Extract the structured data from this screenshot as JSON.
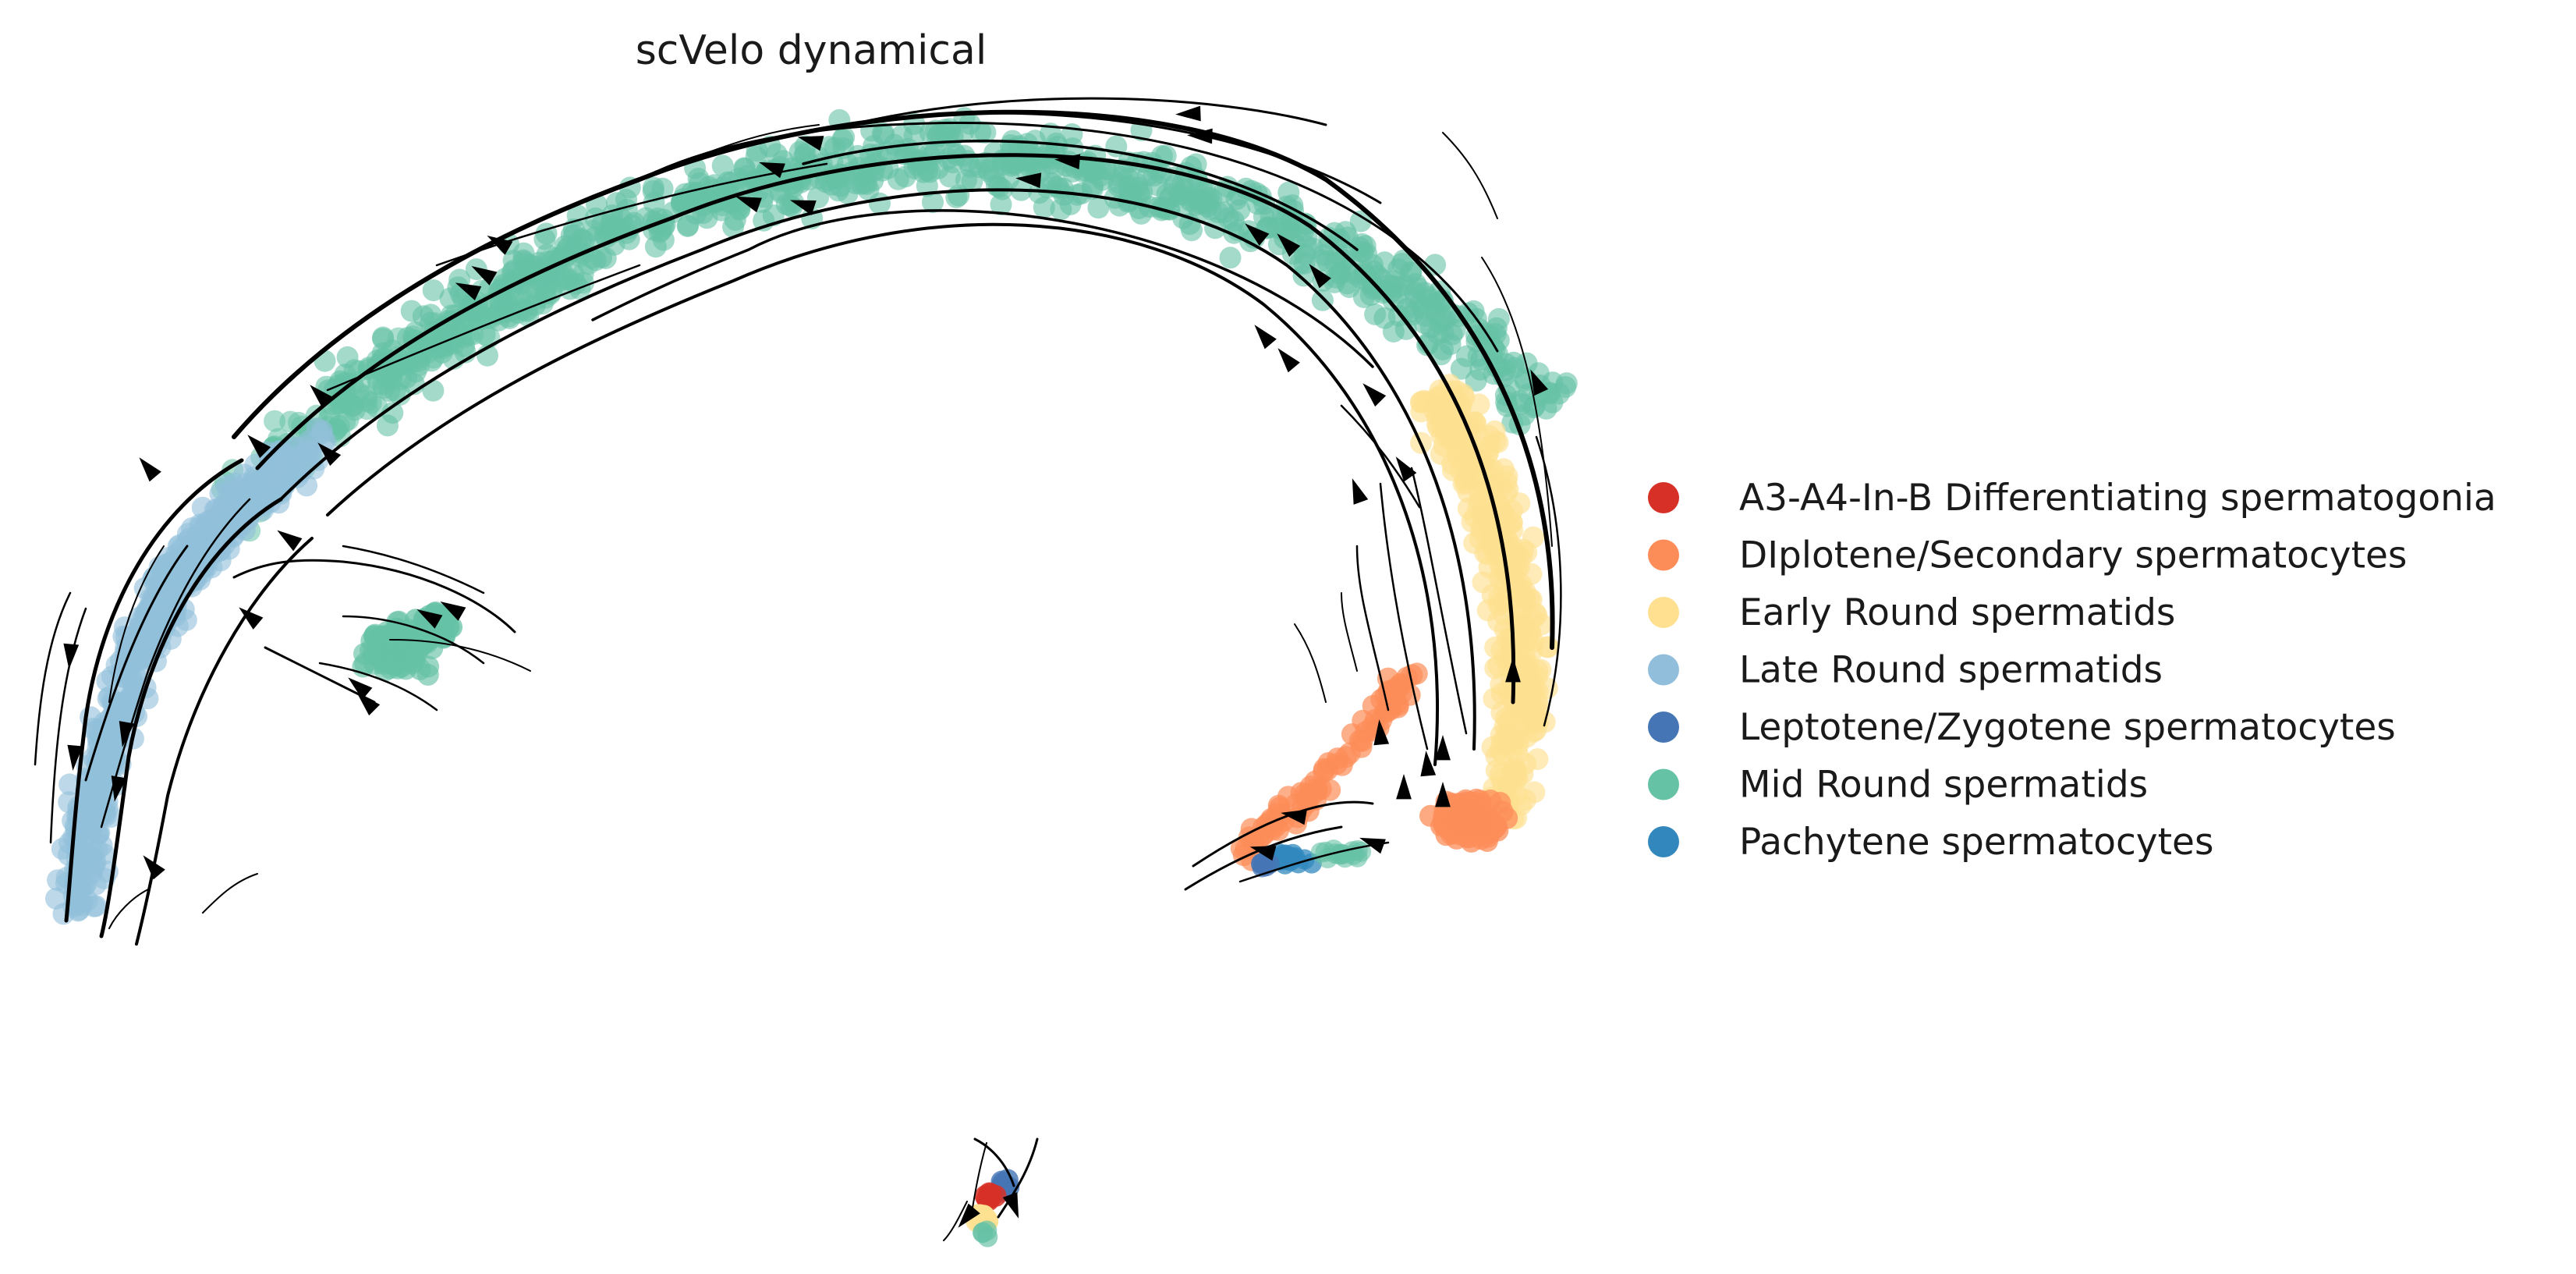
{
  "chart_data": {
    "type": "scatter",
    "title": "scVelo dynamical",
    "xlabel": "",
    "ylabel": "",
    "grid": false,
    "axes_visible": false,
    "legend_position": "right",
    "overlay": "velocity streamlines with arrowheads",
    "series": [
      {
        "name": "A3-A4-In-B Differentiating spermatogonia",
        "color": "#d73027"
      },
      {
        "name": "DIplotene/Secondary spermatocytes",
        "color": "#fc8d59"
      },
      {
        "name": "Early Round spermatids",
        "color": "#fee090"
      },
      {
        "name": "Late Round spermatids",
        "color": "#91bfdb"
      },
      {
        "name": "Leptotene/Zygotene spermatocytes",
        "color": "#4575b4"
      },
      {
        "name": "Mid Round spermatids",
        "color": "#66c2a5"
      },
      {
        "name": "Pachytene spermatocytes",
        "color": "#3288bd"
      }
    ]
  }
}
